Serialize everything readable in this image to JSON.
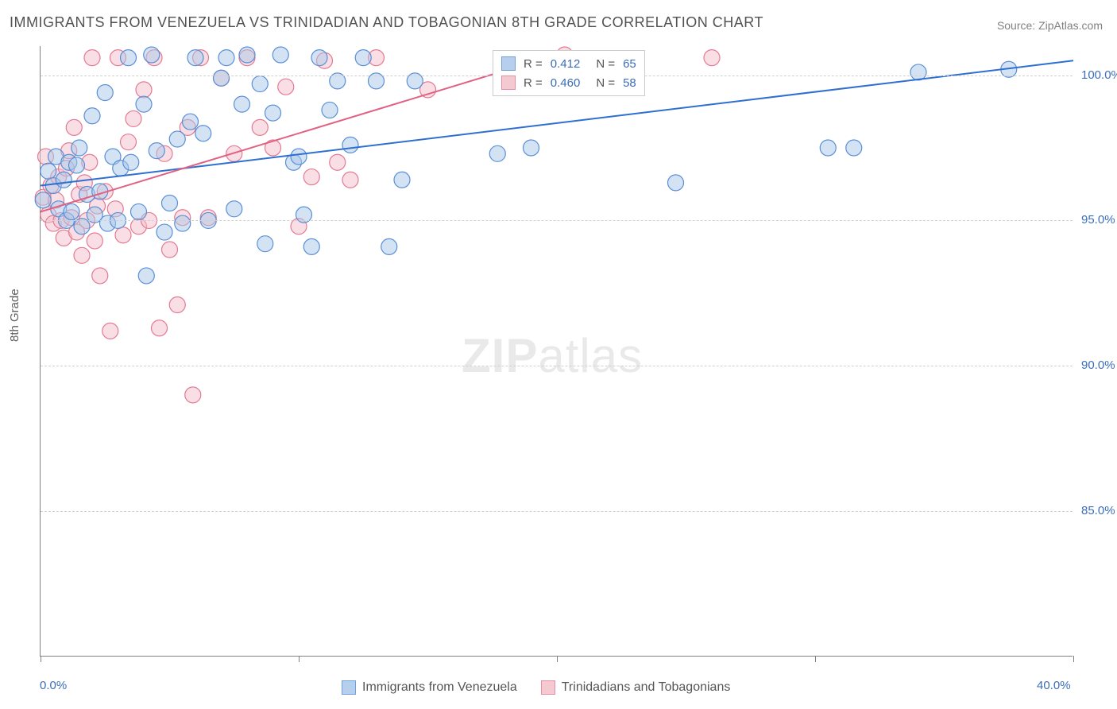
{
  "title": "IMMIGRANTS FROM VENEZUELA VS TRINIDADIAN AND TOBAGONIAN 8TH GRADE CORRELATION CHART",
  "source": "Source: ZipAtlas.com",
  "watermark_a": "ZIP",
  "watermark_b": "atlas",
  "y_axis_title": "8th Grade",
  "chart": {
    "type": "scatter",
    "xlim": [
      0,
      40
    ],
    "ylim": [
      80,
      101
    ],
    "x_ticks": [
      0,
      10,
      20,
      30,
      40
    ],
    "y_ticks": [
      85,
      90,
      95,
      100
    ],
    "x_tick_labels": [
      "0.0%",
      "",
      "",
      "",
      "40.0%"
    ],
    "y_tick_labels": [
      "85.0%",
      "90.0%",
      "95.0%",
      "100.0%"
    ],
    "background_color": "#ffffff",
    "grid_color": "#d0d0d0",
    "axis_color": "#808080",
    "marker_radius": 10,
    "series": [
      {
        "name": "Immigrants from Venezuela",
        "color_fill": "#a9c7ea",
        "color_stroke": "#5a8fd6",
        "r_value": "0.412",
        "n_value": "65",
        "trend": {
          "x1": 0,
          "y1": 96.2,
          "x2": 40,
          "y2": 100.5,
          "color": "#2e6fd1"
        },
        "points": [
          [
            0.1,
            95.7
          ],
          [
            0.3,
            96.7
          ],
          [
            0.5,
            96.2
          ],
          [
            0.6,
            97.2
          ],
          [
            0.7,
            95.4
          ],
          [
            0.9,
            96.4
          ],
          [
            1.0,
            95.0
          ],
          [
            1.1,
            97.0
          ],
          [
            1.2,
            95.3
          ],
          [
            1.4,
            96.9
          ],
          [
            1.5,
            97.5
          ],
          [
            1.6,
            94.8
          ],
          [
            1.8,
            95.9
          ],
          [
            2.0,
            98.6
          ],
          [
            2.1,
            95.2
          ],
          [
            2.3,
            96.0
          ],
          [
            2.5,
            99.4
          ],
          [
            2.6,
            94.9
          ],
          [
            2.8,
            97.2
          ],
          [
            3.0,
            95.0
          ],
          [
            3.1,
            96.8
          ],
          [
            3.4,
            100.6
          ],
          [
            3.5,
            97.0
          ],
          [
            3.8,
            95.3
          ],
          [
            4.0,
            99.0
          ],
          [
            4.1,
            93.1
          ],
          [
            4.3,
            100.7
          ],
          [
            4.5,
            97.4
          ],
          [
            4.8,
            94.6
          ],
          [
            5.0,
            95.6
          ],
          [
            5.3,
            97.8
          ],
          [
            5.5,
            94.9
          ],
          [
            5.8,
            98.4
          ],
          [
            6.0,
            100.6
          ],
          [
            6.3,
            98.0
          ],
          [
            6.5,
            95.0
          ],
          [
            7.0,
            99.9
          ],
          [
            7.2,
            100.6
          ],
          [
            7.5,
            95.4
          ],
          [
            7.8,
            99.0
          ],
          [
            8.0,
            100.7
          ],
          [
            8.5,
            99.7
          ],
          [
            8.7,
            94.2
          ],
          [
            9.0,
            98.7
          ],
          [
            9.3,
            100.7
          ],
          [
            9.8,
            97.0
          ],
          [
            10.0,
            97.2
          ],
          [
            10.2,
            95.2
          ],
          [
            10.5,
            94.1
          ],
          [
            10.8,
            100.6
          ],
          [
            11.2,
            98.8
          ],
          [
            11.5,
            99.8
          ],
          [
            12.0,
            97.6
          ],
          [
            12.5,
            100.6
          ],
          [
            13.0,
            99.8
          ],
          [
            13.5,
            94.1
          ],
          [
            14.0,
            96.4
          ],
          [
            14.5,
            99.8
          ],
          [
            17.7,
            97.3
          ],
          [
            19.0,
            97.5
          ],
          [
            24.6,
            96.3
          ],
          [
            30.5,
            97.5
          ],
          [
            31.5,
            97.5
          ],
          [
            34.0,
            100.1
          ],
          [
            37.5,
            100.2
          ]
        ]
      },
      {
        "name": "Trinidadians and Tobagonians",
        "color_fill": "#f4c0cb",
        "color_stroke": "#e47a92",
        "r_value": "0.460",
        "n_value": "58",
        "trend": {
          "x1": 0,
          "y1": 95.3,
          "x2": 20,
          "y2": 100.7,
          "color": "#e26182"
        },
        "points": [
          [
            0.1,
            95.8
          ],
          [
            0.2,
            97.2
          ],
          [
            0.3,
            95.2
          ],
          [
            0.4,
            96.2
          ],
          [
            0.5,
            94.9
          ],
          [
            0.6,
            95.7
          ],
          [
            0.7,
            96.5
          ],
          [
            0.8,
            95.0
          ],
          [
            0.9,
            94.4
          ],
          [
            1.0,
            96.8
          ],
          [
            1.1,
            97.4
          ],
          [
            1.2,
            95.1
          ],
          [
            1.3,
            98.2
          ],
          [
            1.4,
            94.6
          ],
          [
            1.5,
            95.9
          ],
          [
            1.6,
            93.8
          ],
          [
            1.7,
            96.3
          ],
          [
            1.8,
            95.0
          ],
          [
            1.9,
            97.0
          ],
          [
            2.0,
            100.6
          ],
          [
            2.1,
            94.3
          ],
          [
            2.2,
            95.5
          ],
          [
            2.3,
            93.1
          ],
          [
            2.5,
            96.0
          ],
          [
            2.7,
            91.2
          ],
          [
            2.9,
            95.4
          ],
          [
            3.0,
            100.6
          ],
          [
            3.2,
            94.5
          ],
          [
            3.4,
            97.7
          ],
          [
            3.6,
            98.5
          ],
          [
            3.8,
            94.8
          ],
          [
            4.0,
            99.5
          ],
          [
            4.2,
            95.0
          ],
          [
            4.4,
            100.6
          ],
          [
            4.6,
            91.3
          ],
          [
            4.8,
            97.3
          ],
          [
            5.0,
            94.0
          ],
          [
            5.3,
            92.1
          ],
          [
            5.5,
            95.1
          ],
          [
            5.7,
            98.2
          ],
          [
            5.9,
            89.0
          ],
          [
            6.2,
            100.6
          ],
          [
            6.5,
            95.1
          ],
          [
            7.0,
            99.9
          ],
          [
            7.5,
            97.3
          ],
          [
            8.0,
            100.6
          ],
          [
            8.5,
            98.2
          ],
          [
            9.0,
            97.5
          ],
          [
            9.5,
            99.6
          ],
          [
            10.0,
            94.8
          ],
          [
            10.5,
            96.5
          ],
          [
            11.0,
            100.5
          ],
          [
            11.5,
            97.0
          ],
          [
            12.0,
            96.4
          ],
          [
            13.0,
            100.6
          ],
          [
            15.0,
            99.5
          ],
          [
            20.3,
            100.7
          ],
          [
            26.0,
            100.6
          ]
        ]
      }
    ]
  },
  "stats_legend": {
    "rows": [
      {
        "swatch_fill": "#a9c7ea",
        "swatch_stroke": "#5a8fd6",
        "r": "0.412",
        "n": "65"
      },
      {
        "swatch_fill": "#f4c0cb",
        "swatch_stroke": "#e47a92",
        "r": "0.460",
        "n": "58"
      }
    ]
  },
  "bottom_legend": {
    "items": [
      {
        "swatch_fill": "#a9c7ea",
        "swatch_stroke": "#5a8fd6",
        "label": "Immigrants from Venezuela"
      },
      {
        "swatch_fill": "#f4c0cb",
        "swatch_stroke": "#e47a92",
        "label": "Trinidadians and Tobagonians"
      }
    ]
  }
}
